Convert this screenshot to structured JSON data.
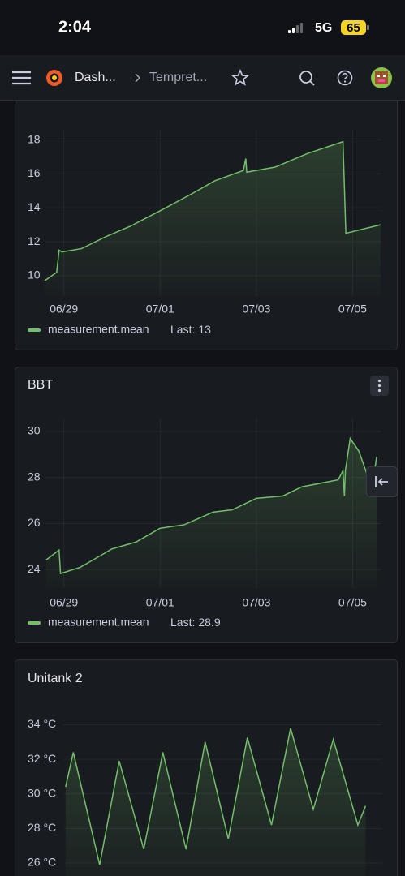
{
  "status_bar": {
    "time": "2:04",
    "network": "5G",
    "battery": "65"
  },
  "nav": {
    "breadcrumb_1": "Dash...",
    "breadcrumb_2": "Tempret..."
  },
  "chart_data": [
    {
      "type": "line",
      "x": [
        28.6,
        28.85,
        28.9,
        28.96,
        29.37,
        29.87,
        30.37,
        31.05,
        31.64,
        32.14,
        32.73,
        32.78,
        32.8,
        33.39,
        34.06,
        34.8,
        34.86,
        35.58
      ],
      "series": [
        {
          "name": "measurement.mean",
          "color": "#73bf69",
          "values": [
            9.7,
            10.2,
            11.5,
            11.4,
            11.6,
            12.3,
            12.9,
            13.9,
            14.8,
            15.6,
            16.2,
            16.9,
            16.1,
            16.4,
            17.2,
            17.9,
            12.5,
            13.0
          ]
        }
      ],
      "xlim": [
        28.6,
        35.6
      ],
      "ylim": [
        8.8,
        18.6
      ],
      "xticks": [
        {
          "value": 29,
          "label": "06/29"
        },
        {
          "value": 31,
          "label": "07/01"
        },
        {
          "value": 33,
          "label": "07/03"
        },
        {
          "value": 35,
          "label": "07/05"
        }
      ],
      "yticks": [
        10,
        12,
        14,
        16,
        18
      ],
      "grid": true,
      "legend_stat": "Last:",
      "last_value": 13
    },
    {
      "type": "line",
      "title": "BBT",
      "x": [
        28.63,
        28.9,
        28.93,
        29.34,
        30.0,
        30.5,
        31.0,
        31.5,
        32.1,
        32.5,
        33.0,
        33.55,
        33.95,
        34.7,
        34.8,
        34.83,
        34.85,
        34.95,
        35.13,
        35.4,
        35.5
      ],
      "series": [
        {
          "name": "measurement.mean",
          "color": "#73bf69",
          "values": [
            24.42,
            24.85,
            23.83,
            24.1,
            24.9,
            25.2,
            25.8,
            25.95,
            26.5,
            26.6,
            27.1,
            27.2,
            27.6,
            27.9,
            28.3,
            27.2,
            28.3,
            29.7,
            29.15,
            27.55,
            28.9
          ]
        }
      ],
      "xlim": [
        28.6,
        35.6
      ],
      "ylim": [
        23.2,
        30.6
      ],
      "xticks": [
        {
          "value": 29,
          "label": "06/29"
        },
        {
          "value": 31,
          "label": "07/01"
        },
        {
          "value": 33,
          "label": "07/03"
        },
        {
          "value": 35,
          "label": "07/05"
        }
      ],
      "yticks": [
        24,
        26,
        28,
        30
      ],
      "grid": true,
      "legend_stat": "Last:",
      "last_value": 28.9
    },
    {
      "type": "line",
      "title": "Unitank 2",
      "x": [
        28.65,
        28.82,
        29.4,
        29.83,
        30.37,
        30.79,
        31.3,
        31.72,
        32.23,
        32.65,
        33.18,
        33.6,
        34.1,
        34.54,
        35.08,
        35.25
      ],
      "series": [
        {
          "color": "#73bf69",
          "values": [
            30.4,
            32.4,
            25.9,
            31.9,
            26.8,
            32.4,
            26.8,
            33.0,
            27.4,
            33.25,
            28.2,
            33.8,
            29.1,
            33.15,
            28.2,
            29.3
          ]
        }
      ],
      "xlim": [
        28.6,
        35.6
      ],
      "ylim": [
        24.5,
        35.1
      ],
      "yticks": [
        {
          "value": 26,
          "label": "26 °C"
        },
        {
          "value": 28,
          "label": "28 °C"
        },
        {
          "value": 30,
          "label": "30 °C"
        },
        {
          "value": 32,
          "label": "32 °C"
        },
        {
          "value": 34,
          "label": "34 °C"
        }
      ],
      "grid": true
    }
  ]
}
